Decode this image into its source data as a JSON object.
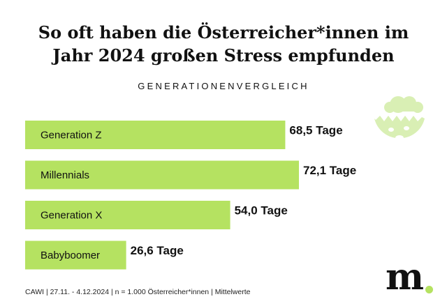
{
  "header": {
    "title_line1": "So oft haben die Österreicher*innen im",
    "title_line2": "Jahr 2024 großen Stress empfunden",
    "subtitle": "GENERATIONENVERGLEICH"
  },
  "chart_data": {
    "type": "bar",
    "orientation": "horizontal",
    "title": "So oft haben die Österreicher*innen im Jahr 2024 großen Stress empfunden",
    "subtitle": "GENERATIONENVERGLEICH",
    "categories": [
      "Generation Z",
      "Millennials",
      "Generation X",
      "Babyboomer"
    ],
    "values": [
      68.5,
      72.1,
      54.0,
      26.6
    ],
    "value_labels": [
      "68,5 Tage",
      "72,1 Tage",
      "54,0 Tage",
      "26,6 Tage"
    ],
    "unit": "Tage",
    "xlim": [
      0,
      72.1
    ],
    "grid": false,
    "legend": "none"
  },
  "colors": {
    "bar": "#b5e261",
    "text": "#111111",
    "icon": "#d9efb4"
  },
  "icons": {
    "stress": "stressed-face-cloud-icon",
    "logo_dot": "dot"
  },
  "footer": {
    "source": "CAWI | 27.11. - 4.12.2024 | n = 1.000 Österreicher*innen | Mittelwerte"
  },
  "logo": {
    "text": "m"
  }
}
